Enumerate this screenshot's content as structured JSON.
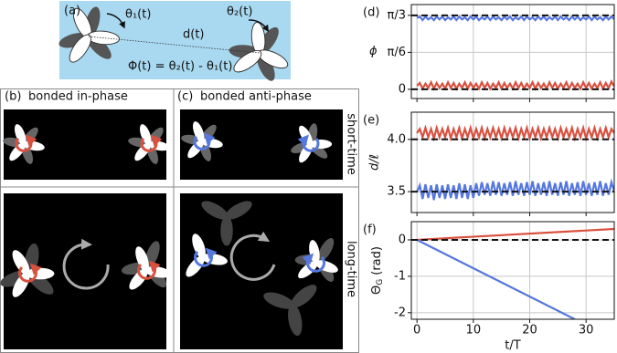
{
  "figure": {
    "panel_a": {
      "label": "(a)",
      "theta1": "θ₁(t)",
      "theta2": "θ₂(t)",
      "distance": "d(t)",
      "equation": "Φ(t) = θ₂(t) - θ₁(t)"
    },
    "panel_b": {
      "label": "(b)",
      "title": "bonded in-phase"
    },
    "panel_c": {
      "label": "(c)",
      "title": "bonded anti-phase"
    },
    "row_labels": [
      "short-time",
      "long-time"
    ]
  },
  "chart_data": [
    {
      "type": "line",
      "label": "(d)",
      "ylabel": "ϕ",
      "x": [
        0,
        0.5,
        1,
        1.5,
        2,
        2.5,
        3,
        3.5,
        4,
        4.5,
        5,
        5.5,
        6,
        6.5,
        7,
        7.5,
        8,
        8.5,
        9,
        9.5,
        10,
        10.5,
        11,
        11.5,
        12,
        12.5,
        13,
        13.5,
        14,
        14.5,
        15,
        15.5,
        16,
        16.5,
        17,
        17.5,
        18,
        18.5,
        19,
        19.5,
        20,
        20.5,
        21,
        21.5,
        22,
        22.5,
        23,
        23.5,
        24,
        24.5,
        25,
        25.5,
        26,
        26.5,
        27,
        27.5,
        28,
        28.5,
        29,
        29.5,
        30,
        30.5,
        31,
        31.5,
        32,
        32.5,
        33,
        33.5,
        34,
        34.5,
        35
      ],
      "series": [
        {
          "color": "#5577e0",
          "values": [
            1.01,
            1.03,
            0.98,
            1.03,
            0.99,
            1.02,
            0.98,
            1.03,
            0.99,
            1.03,
            0.98,
            1.02,
            0.99,
            1.03,
            0.98,
            1.03,
            0.99,
            1.02,
            0.98,
            1.03,
            0.99,
            1.03,
            0.98,
            1.02,
            0.99,
            1.03,
            0.98,
            1.03,
            0.99,
            1.02,
            0.98,
            1.03,
            0.99,
            1.03,
            0.98,
            1.02,
            0.99,
            1.03,
            0.98,
            1.03,
            0.99,
            1.02,
            0.98,
            1.03,
            0.99,
            1.03,
            0.98,
            1.02,
            0.99,
            1.03,
            0.98,
            1.03,
            0.99,
            1.02,
            0.98,
            1.03,
            0.99,
            1.03,
            0.98,
            1.02,
            0.99,
            1.03,
            0.98,
            1.03,
            0.99,
            1.02,
            0.98,
            1.03,
            0.99,
            1.03,
            0.99
          ]
        },
        {
          "color": "#d9503f",
          "values": [
            0.05,
            0.09,
            0.01,
            0.08,
            0.02,
            0.1,
            0.01,
            0.09,
            0.02,
            0.08,
            0.01,
            0.1,
            0.02,
            0.09,
            0.01,
            0.08,
            0.02,
            0.1,
            0.01,
            0.09,
            0.02,
            0.08,
            0.01,
            0.1,
            0.02,
            0.09,
            0.01,
            0.08,
            0.02,
            0.1,
            0.01,
            0.09,
            0.02,
            0.08,
            0.01,
            0.1,
            0.02,
            0.09,
            0.01,
            0.08,
            0.02,
            0.1,
            0.01,
            0.09,
            0.02,
            0.08,
            0.01,
            0.1,
            0.02,
            0.09,
            0.01,
            0.08,
            0.02,
            0.1,
            0.01,
            0.09,
            0.02,
            0.08,
            0.01,
            0.1,
            0.02,
            0.09,
            0.01,
            0.08,
            0.02,
            0.1,
            0.01,
            0.09,
            0.02,
            0.11,
            0.04
          ]
        }
      ],
      "hlines": [
        1.0472,
        0
      ],
      "xlim": [
        -1,
        35
      ],
      "xticks": [
        0,
        10,
        20,
        30
      ],
      "show_xtick_labels": false,
      "ylim": [
        -0.13,
        1.2
      ],
      "yticks": [
        {
          "value": 1.0472,
          "label": "π/3"
        },
        {
          "value": 0.5236,
          "label": "π/6"
        },
        0
      ],
      "grid": true
    },
    {
      "type": "line",
      "label": "(e)",
      "ylabel": "d/ℓ",
      "x": [
        0,
        0.5,
        1,
        1.5,
        2,
        2.5,
        3,
        3.5,
        4,
        4.5,
        5,
        5.5,
        6,
        6.5,
        7,
        7.5,
        8,
        8.5,
        9,
        9.5,
        10,
        10.5,
        11,
        11.5,
        12,
        12.5,
        13,
        13.5,
        14,
        14.5,
        15,
        15.5,
        16,
        16.5,
        17,
        17.5,
        18,
        18.5,
        19,
        19.5,
        20,
        20.5,
        21,
        21.5,
        22,
        22.5,
        23,
        23.5,
        24,
        24.5,
        25,
        25.5,
        26,
        26.5,
        27,
        27.5,
        28,
        28.5,
        29,
        29.5,
        30,
        30.5,
        31,
        31.5,
        32,
        32.5,
        33,
        33.5,
        34,
        34.5,
        35
      ],
      "series": [
        {
          "color": "#d9503f",
          "values": [
            4.06,
            4.1,
            4.02,
            4.11,
            4.02,
            4.1,
            4.01,
            4.11,
            4.02,
            4.1,
            4.02,
            4.11,
            4.01,
            4.1,
            4.02,
            4.11,
            4.01,
            4.1,
            4.02,
            4.11,
            4.01,
            4.1,
            4.02,
            4.11,
            4.01,
            4.1,
            4.02,
            4.11,
            4.02,
            4.1,
            4.01,
            4.11,
            4.02,
            4.1,
            4.02,
            4.11,
            4.01,
            4.1,
            4.02,
            4.11,
            4.01,
            4.1,
            4.02,
            4.11,
            4.01,
            4.1,
            4.02,
            4.11,
            4.02,
            4.1,
            4.01,
            4.11,
            4.02,
            4.1,
            4.02,
            4.11,
            4.01,
            4.1,
            4.02,
            4.11,
            4.01,
            4.1,
            4.02,
            4.11,
            4.01,
            4.1,
            4.02,
            4.11,
            4.02,
            4.1,
            4.06
          ]
        },
        {
          "color": "#5577e0",
          "values": [
            3.5,
            3.56,
            3.43,
            3.57,
            3.44,
            3.56,
            3.42,
            3.57,
            3.44,
            3.56,
            3.43,
            3.57,
            3.44,
            3.56,
            3.43,
            3.58,
            3.44,
            3.57,
            3.43,
            3.56,
            3.44,
            3.58,
            3.46,
            3.59,
            3.47,
            3.58,
            3.46,
            3.6,
            3.47,
            3.59,
            3.46,
            3.58,
            3.47,
            3.59,
            3.46,
            3.6,
            3.47,
            3.58,
            3.46,
            3.59,
            3.47,
            3.6,
            3.46,
            3.58,
            3.47,
            3.59,
            3.46,
            3.6,
            3.47,
            3.58,
            3.46,
            3.59,
            3.47,
            3.6,
            3.46,
            3.58,
            3.47,
            3.59,
            3.46,
            3.6,
            3.47,
            3.58,
            3.46,
            3.59,
            3.47,
            3.6,
            3.46,
            3.58,
            3.47,
            3.59,
            3.5
          ]
        }
      ],
      "hlines": [
        4,
        3.5
      ],
      "xlim": [
        -1,
        35
      ],
      "xticks": [
        0,
        10,
        20,
        30
      ],
      "show_xtick_labels": false,
      "ylim": [
        3.3,
        4.26
      ],
      "yticks": [
        {
          "value": 4,
          "label": "4.0"
        },
        3.5
      ],
      "grid": true
    },
    {
      "type": "line",
      "label": "(f)",
      "ylabel": {
        "main": "Θ",
        "sub": "G",
        "rest": "(rad)"
      },
      "xlabel": "t/T",
      "series": [
        {
          "color": "#d9503f",
          "x": [
            0,
            35
          ],
          "values": [
            0,
            0.3
          ]
        },
        {
          "color": "#5577e0",
          "x": [
            0,
            28
          ],
          "values": [
            0,
            -2.18
          ]
        }
      ],
      "hlines": [
        0
      ],
      "xlim": [
        -1,
        35
      ],
      "xticks": [
        0,
        10,
        20,
        30
      ],
      "show_xtick_labels": true,
      "ylim": [
        -2.18,
        0.5
      ],
      "yticks": [
        0,
        -1,
        -2
      ],
      "grid": true
    }
  ]
}
